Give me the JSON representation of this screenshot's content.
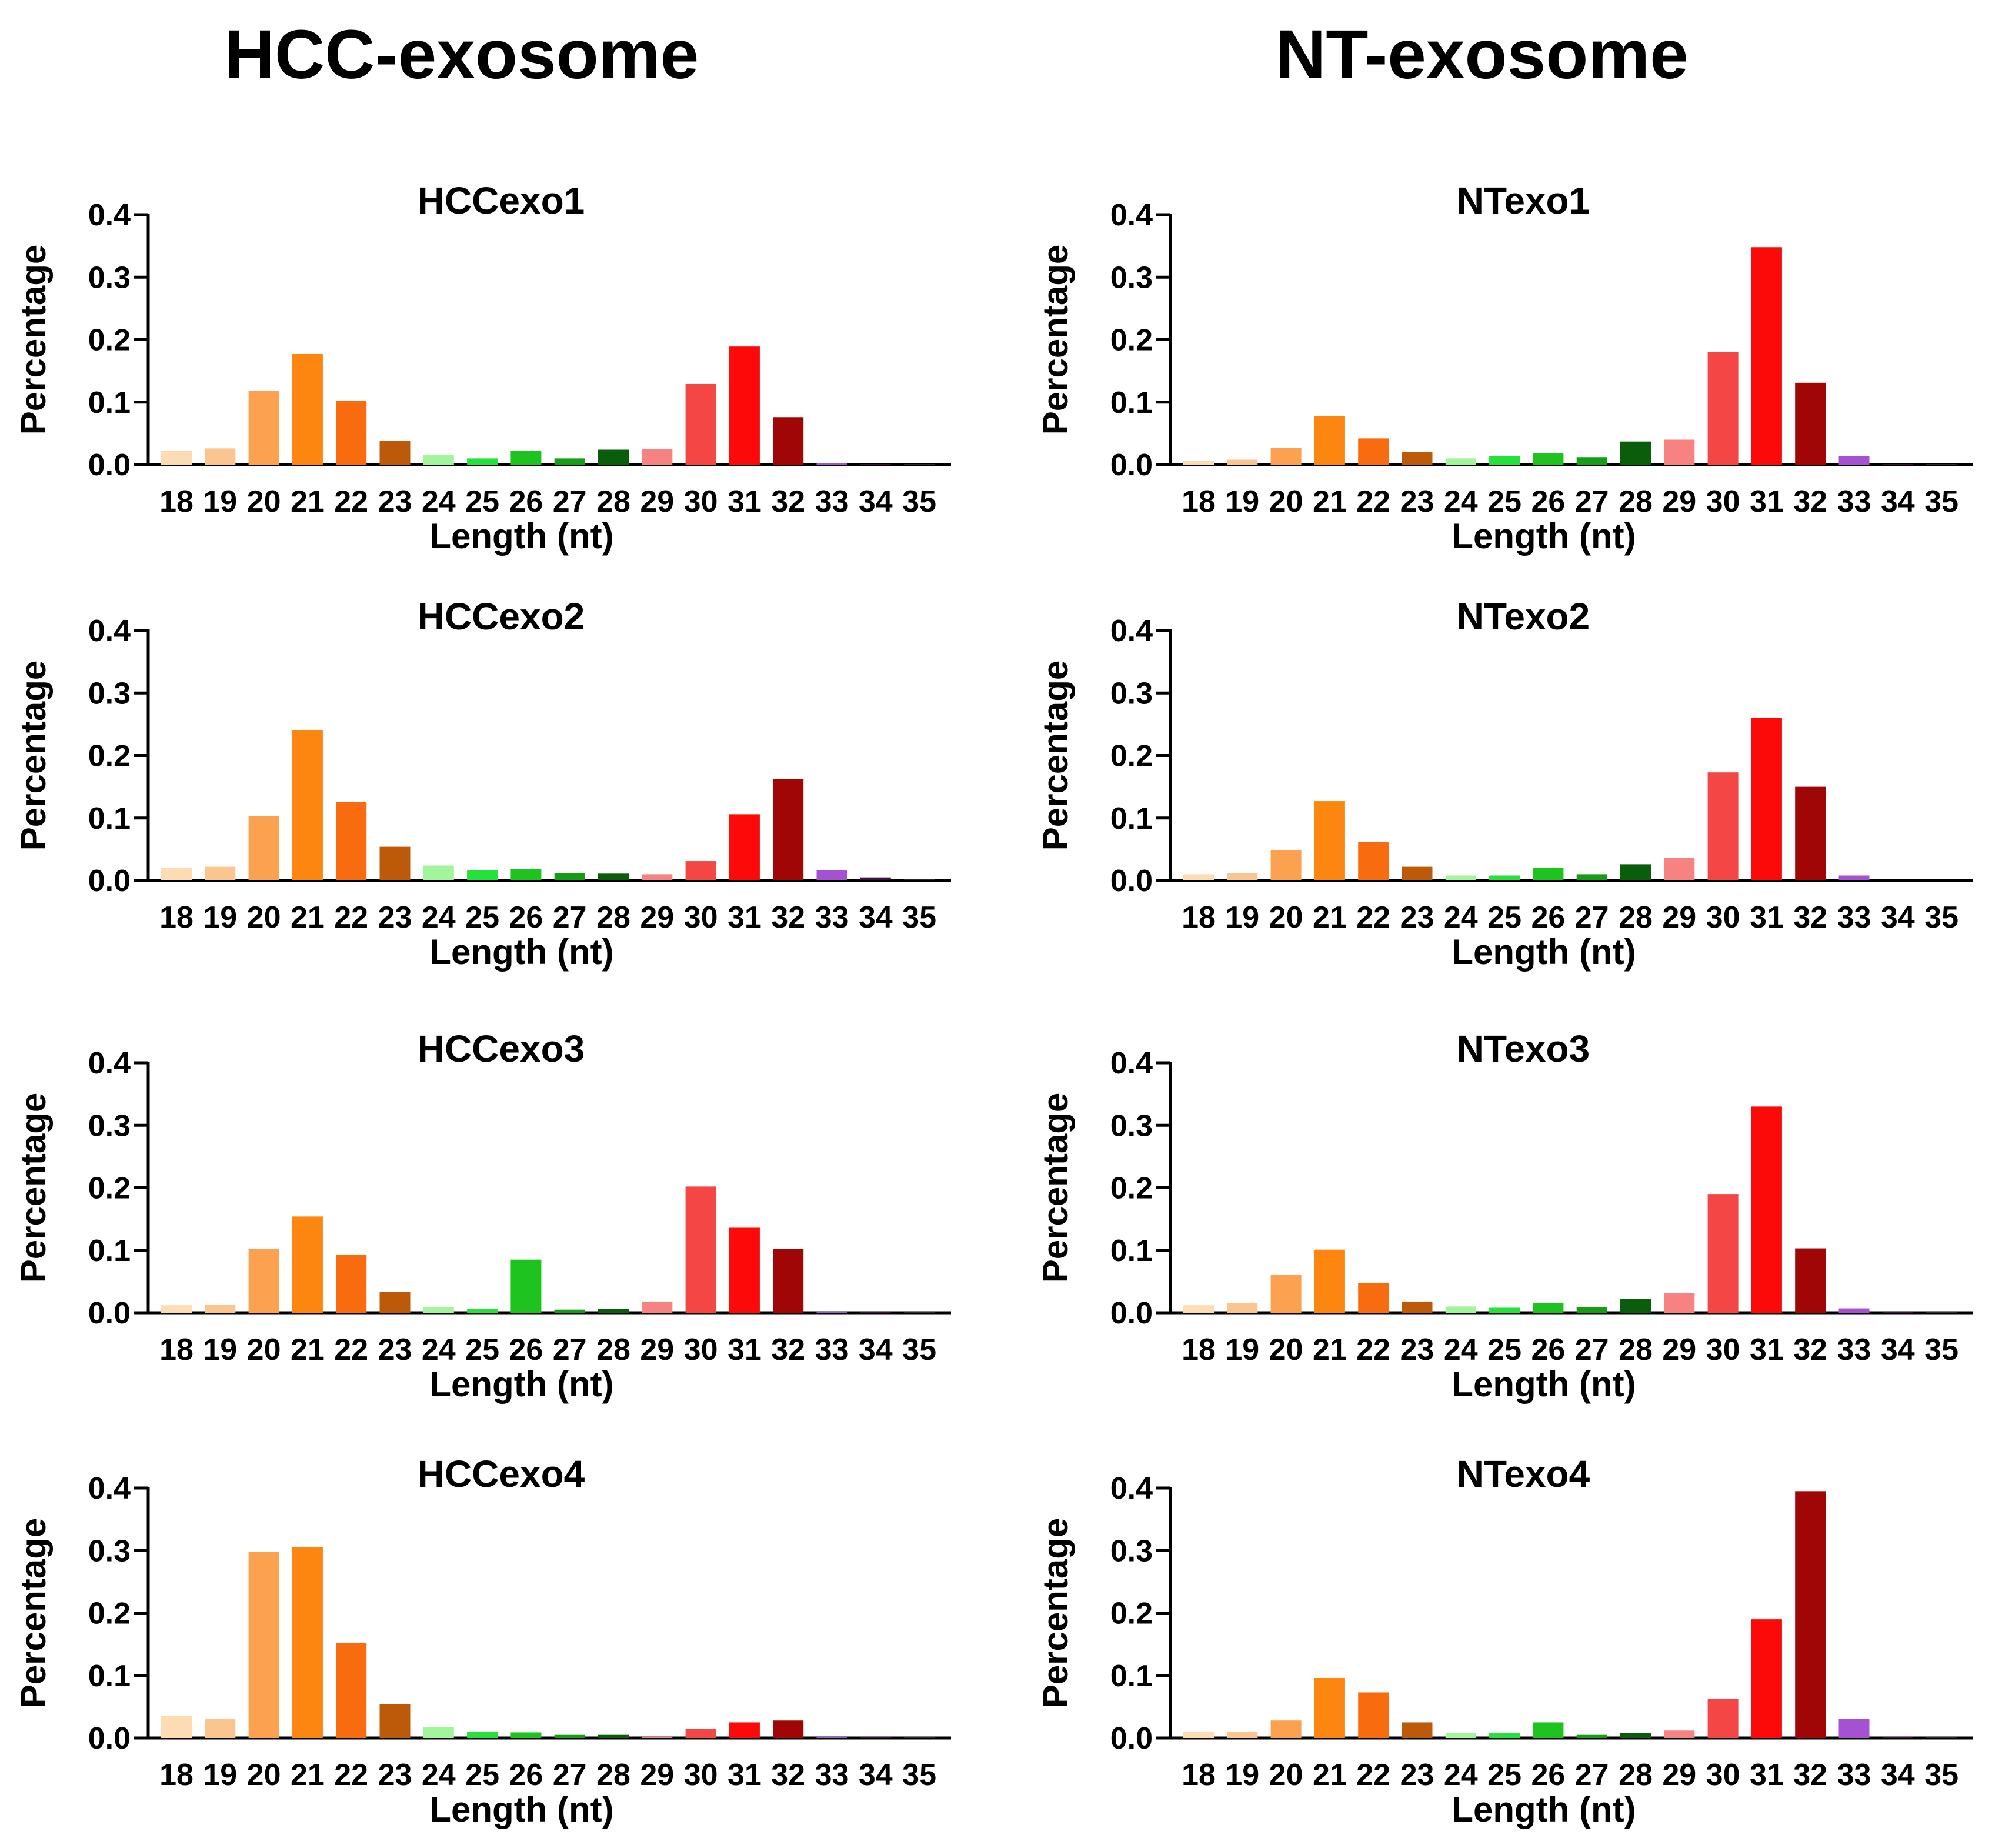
{
  "group_titles": {
    "hcc": "HCC-exosome",
    "nt": "NT-exosome"
  },
  "bar_colors": [
    "#fddcb4",
    "#fbc58f",
    "#fca14f",
    "#fc860f",
    "#f86b0f",
    "#bd5a0a",
    "#a2f59a",
    "#23e23a",
    "#1fc31f",
    "#159e15",
    "#0a5d0a",
    "#f78282",
    "#f54646",
    "#fc0a0a",
    "#a00606",
    "#a452d2",
    "#3c0f3c",
    "#2b2b2b"
  ],
  "chart_data": [
    {
      "type": "bar",
      "title": "HCCexo1",
      "group": "HCC-exosome",
      "xlabel": "Length (nt)",
      "ylabel": "Percentage",
      "categories": [
        "18",
        "19",
        "20",
        "21",
        "22",
        "23",
        "24",
        "25",
        "26",
        "27",
        "28",
        "29",
        "30",
        "31",
        "32",
        "33",
        "34",
        "35"
      ],
      "yticks": [
        "0.0",
        "0.1",
        "0.2",
        "0.3",
        "0.4"
      ],
      "ylim": [
        0,
        0.4
      ],
      "values": [
        0.022,
        0.026,
        0.118,
        0.177,
        0.102,
        0.038,
        0.015,
        0.01,
        0.022,
        0.01,
        0.024,
        0.025,
        0.129,
        0.189,
        0.076,
        0.002,
        0.001,
        0.001
      ]
    },
    {
      "type": "bar",
      "title": "HCCexo2",
      "group": "HCC-exosome",
      "xlabel": "Length (nt)",
      "ylabel": "Percentage",
      "categories": [
        "18",
        "19",
        "20",
        "21",
        "22",
        "23",
        "24",
        "25",
        "26",
        "27",
        "28",
        "29",
        "30",
        "31",
        "32",
        "33",
        "34",
        "35"
      ],
      "yticks": [
        "0.0",
        "0.1",
        "0.2",
        "0.3",
        "0.4"
      ],
      "ylim": [
        0,
        0.4
      ],
      "values": [
        0.02,
        0.022,
        0.103,
        0.24,
        0.126,
        0.054,
        0.024,
        0.016,
        0.018,
        0.012,
        0.011,
        0.01,
        0.031,
        0.106,
        0.162,
        0.017,
        0.005,
        0.002
      ]
    },
    {
      "type": "bar",
      "title": "HCCexo3",
      "group": "HCC-exosome",
      "xlabel": "Length (nt)",
      "ylabel": "Percentage",
      "categories": [
        "18",
        "19",
        "20",
        "21",
        "22",
        "23",
        "24",
        "25",
        "26",
        "27",
        "28",
        "29",
        "30",
        "31",
        "32",
        "33",
        "34",
        "35"
      ],
      "yticks": [
        "0.0",
        "0.1",
        "0.2",
        "0.3",
        "0.4"
      ],
      "ylim": [
        0,
        0.4
      ],
      "values": [
        0.012,
        0.013,
        0.102,
        0.154,
        0.093,
        0.033,
        0.009,
        0.006,
        0.085,
        0.005,
        0.006,
        0.018,
        0.202,
        0.136,
        0.102,
        0.002,
        0.001,
        0.001
      ]
    },
    {
      "type": "bar",
      "title": "HCCexo4",
      "group": "HCC-exosome",
      "xlabel": "Length (nt)",
      "ylabel": "Percentage",
      "categories": [
        "18",
        "19",
        "20",
        "21",
        "22",
        "23",
        "24",
        "25",
        "26",
        "27",
        "28",
        "29",
        "30",
        "31",
        "32",
        "33",
        "34",
        "35"
      ],
      "yticks": [
        "0.0",
        "0.1",
        "0.2",
        "0.3",
        "0.4"
      ],
      "ylim": [
        0,
        0.4
      ],
      "values": [
        0.035,
        0.031,
        0.298,
        0.305,
        0.152,
        0.054,
        0.017,
        0.01,
        0.009,
        0.005,
        0.005,
        0.002,
        0.015,
        0.025,
        0.028,
        0.001,
        0.001,
        0.001
      ]
    },
    {
      "type": "bar",
      "title": "NTexo1",
      "group": "NT-exosome",
      "xlabel": "Length (nt)",
      "ylabel": "Percentage",
      "categories": [
        "18",
        "19",
        "20",
        "21",
        "22",
        "23",
        "24",
        "25",
        "26",
        "27",
        "28",
        "29",
        "30",
        "31",
        "32",
        "33",
        "34",
        "35"
      ],
      "yticks": [
        "0.0",
        "0.1",
        "0.2",
        "0.3",
        "0.4"
      ],
      "ylim": [
        0,
        0.4
      ],
      "values": [
        0.006,
        0.008,
        0.027,
        0.078,
        0.042,
        0.02,
        0.01,
        0.014,
        0.018,
        0.012,
        0.037,
        0.04,
        0.18,
        0.348,
        0.131,
        0.014,
        0.001,
        0.001
      ]
    },
    {
      "type": "bar",
      "title": "NTexo2",
      "group": "NT-exosome",
      "xlabel": "Length (nt)",
      "ylabel": "Percentage",
      "categories": [
        "18",
        "19",
        "20",
        "21",
        "22",
        "23",
        "24",
        "25",
        "26",
        "27",
        "28",
        "29",
        "30",
        "31",
        "32",
        "33",
        "34",
        "35"
      ],
      "yticks": [
        "0.0",
        "0.1",
        "0.2",
        "0.3",
        "0.4"
      ],
      "ylim": [
        0,
        0.4
      ],
      "values": [
        0.01,
        0.012,
        0.048,
        0.127,
        0.062,
        0.022,
        0.008,
        0.008,
        0.02,
        0.01,
        0.026,
        0.036,
        0.173,
        0.26,
        0.15,
        0.008,
        0.001,
        0.001
      ]
    },
    {
      "type": "bar",
      "title": "NTexo3",
      "group": "NT-exosome",
      "xlabel": "Length (nt)",
      "ylabel": "Percentage",
      "categories": [
        "18",
        "19",
        "20",
        "21",
        "22",
        "23",
        "24",
        "25",
        "26",
        "27",
        "28",
        "29",
        "30",
        "31",
        "32",
        "33",
        "34",
        "35"
      ],
      "yticks": [
        "0.0",
        "0.1",
        "0.2",
        "0.3",
        "0.4"
      ],
      "ylim": [
        0,
        0.4
      ],
      "values": [
        0.012,
        0.016,
        0.061,
        0.101,
        0.048,
        0.018,
        0.01,
        0.008,
        0.016,
        0.009,
        0.022,
        0.032,
        0.19,
        0.33,
        0.103,
        0.007,
        0.001,
        0.001
      ]
    },
    {
      "type": "bar",
      "title": "NTexo4",
      "group": "NT-exosome",
      "xlabel": "Length (nt)",
      "ylabel": "Percentage",
      "categories": [
        "18",
        "19",
        "20",
        "21",
        "22",
        "23",
        "24",
        "25",
        "26",
        "27",
        "28",
        "29",
        "30",
        "31",
        "32",
        "33",
        "34",
        "35"
      ],
      "yticks": [
        "0.0",
        "0.1",
        "0.2",
        "0.3",
        "0.4"
      ],
      "ylim": [
        0,
        0.4
      ],
      "values": [
        0.01,
        0.01,
        0.028,
        0.096,
        0.073,
        0.025,
        0.008,
        0.008,
        0.025,
        0.005,
        0.008,
        0.012,
        0.063,
        0.19,
        0.395,
        0.031,
        0.002,
        0.001
      ]
    }
  ]
}
